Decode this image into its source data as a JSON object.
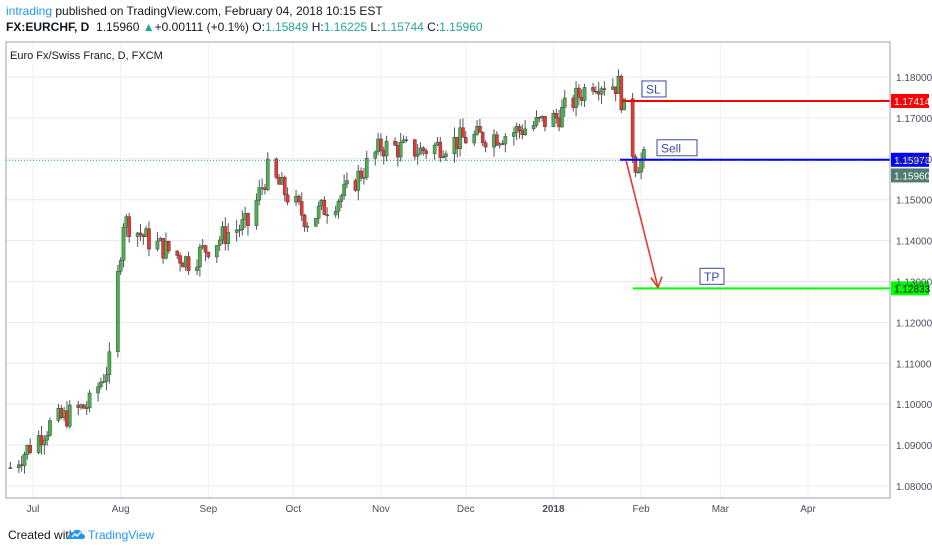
{
  "header": {
    "author": "intrading",
    "published_text": " published on TradingView.com, February 04, 2018 10:15 EST",
    "symbol": "FX:EURCHF, D",
    "last": "1.15960",
    "change": "+0.00111 (+0.1%)",
    "o_label": "O:",
    "o": "1.15849",
    "h_label": "H:",
    "h": "1.16225",
    "l_label": "L:",
    "l": "1.15744",
    "c_label": "C:",
    "c": "1.15960"
  },
  "chart_data": {
    "type": "candlestick",
    "title": "Euro Fx/Swiss Franc, D, FXCM",
    "x_tick_labels": [
      "Jul",
      "Aug",
      "Sep",
      "Oct",
      "Nov",
      "Dec",
      "2018",
      "Feb",
      "Mar",
      "Apr"
    ],
    "y_tick_labels": [
      "1.18000",
      "1.17000",
      "1.16000",
      "1.15000",
      "1.14000",
      "1.13000",
      "1.12000",
      "1.11000",
      "1.10000",
      "1.09000",
      "1.08000"
    ],
    "ylim": [
      1.0775,
      1.1865
    ],
    "grid": true,
    "series": {
      "x": [
        "2017-06-23",
        "2017-07-07",
        "2017-07-21",
        "2017-07-28",
        "2017-08-02",
        "2017-08-11",
        "2017-08-25",
        "2017-09-08",
        "2017-09-15",
        "2017-09-22",
        "2017-10-06",
        "2017-10-20",
        "2017-11-01",
        "2017-11-15",
        "2017-12-01",
        "2017-12-15",
        "2018-01-02",
        "2018-01-15",
        "2018-01-24",
        "2018-01-30",
        "2018-02-02"
      ],
      "close": [
        1.0845,
        1.095,
        1.1,
        1.11,
        1.145,
        1.14,
        1.135,
        1.142,
        1.144,
        1.157,
        1.145,
        1.152,
        1.163,
        1.162,
        1.165,
        1.166,
        1.17,
        1.179,
        1.178,
        1.159,
        1.1596
      ]
    },
    "annotations": [
      {
        "label": "SL",
        "price": "1.17414",
        "color": "#ff0000"
      },
      {
        "label": "Sell",
        "price": "1.15976",
        "color": "#0000ff"
      },
      {
        "label": "TP",
        "price": "1.12833",
        "color": "#00ff00"
      }
    ],
    "last_price_label": "1.15960"
  },
  "footer": {
    "created_with": "Created with",
    "brand": "TradingView"
  }
}
